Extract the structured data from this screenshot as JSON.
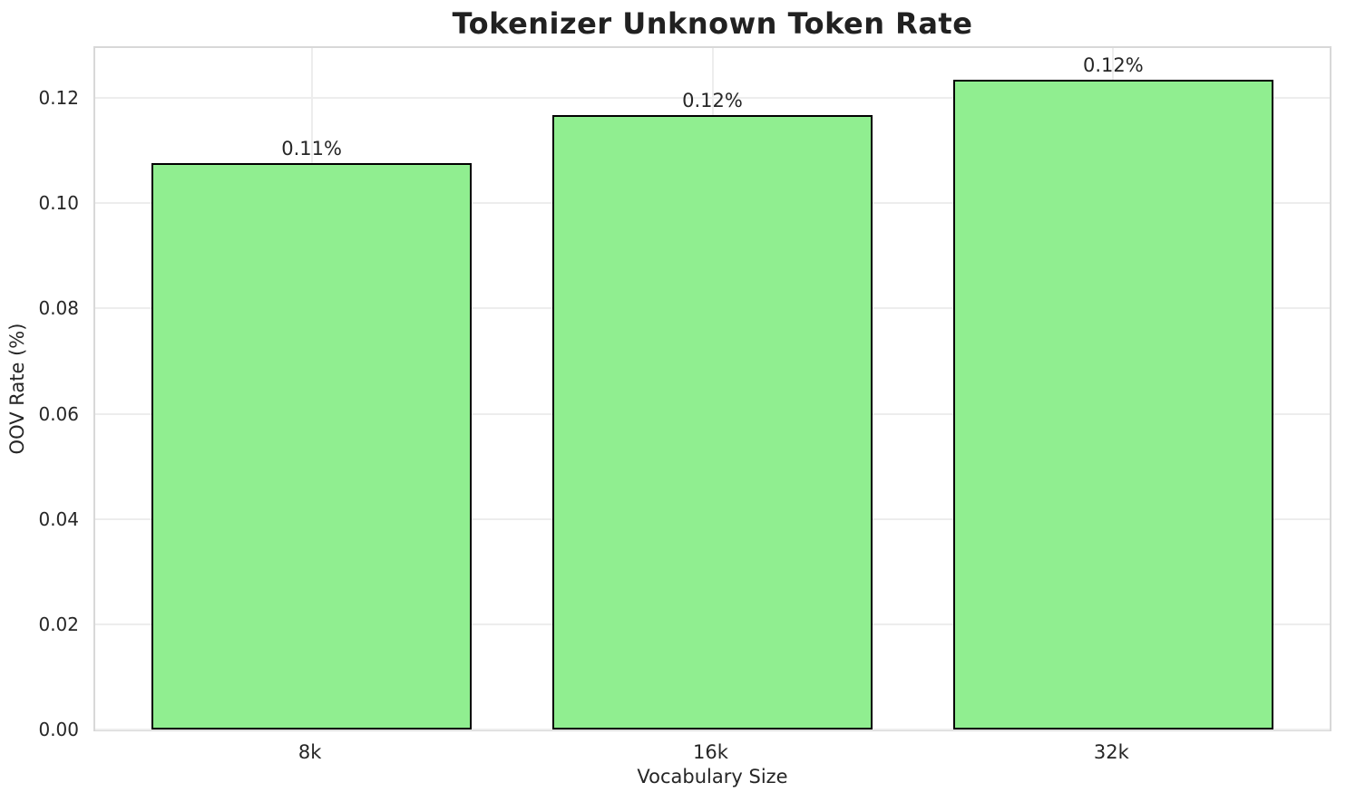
{
  "chart_data": {
    "type": "bar",
    "title": "Tokenizer Unknown Token Rate",
    "xlabel": "Vocabulary Size",
    "ylabel": "OOV Rate (%)",
    "categories": [
      "8k",
      "16k",
      "32k"
    ],
    "values": [
      0.1077,
      0.1167,
      0.1234
    ],
    "bar_labels": [
      "0.11%",
      "0.12%",
      "0.12%"
    ],
    "ytick_labels": [
      "0.00",
      "0.02",
      "0.04",
      "0.06",
      "0.08",
      "0.10",
      "0.12"
    ],
    "ytick_values": [
      0,
      0.02,
      0.04,
      0.06,
      0.08,
      0.1,
      0.12
    ],
    "ylim": [
      0,
      0.1295
    ],
    "grid": true,
    "legend_position": "none",
    "colors": {
      "bar_fill": "#90EE90",
      "bar_edge": "#000000",
      "grid_line": "#ededed",
      "spine": "#d8d8d8",
      "text": "#262626",
      "title_text": "#212121",
      "background": "#ffffff"
    }
  }
}
